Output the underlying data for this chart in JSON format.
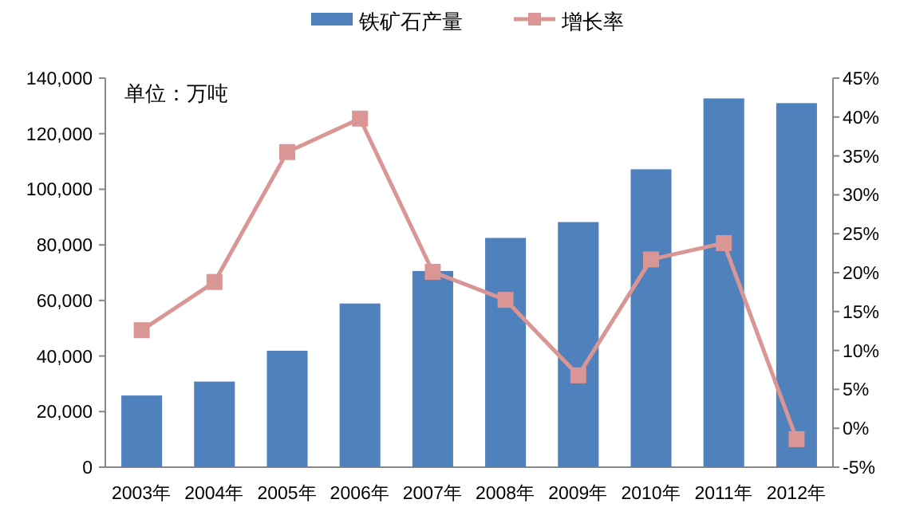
{
  "chart_data": {
    "type": "bar",
    "categories": [
      "2003年",
      "2004年",
      "2005年",
      "2006年",
      "2007年",
      "2008年",
      "2009年",
      "2010年",
      "2011年",
      "2012年"
    ],
    "series": [
      {
        "name": "铁矿石产量",
        "color": "#4f81bd",
        "values": [
          25800,
          30800,
          41900,
          58900,
          70600,
          82500,
          88200,
          107200,
          132700,
          131000
        ]
      },
      {
        "name": "增长率",
        "type": "line",
        "axis": "y2",
        "color": "#d99694",
        "marker": "square",
        "values": [
          12.6,
          18.8,
          35.5,
          39.8,
          20.1,
          16.5,
          6.8,
          21.7,
          23.8,
          -1.4
        ]
      }
    ],
    "ylim": [
      0,
      140000
    ],
    "yticks": [
      0,
      {
        "value": 20000,
        "label": "20,000"
      },
      {
        "value": 40000,
        "label": "40,000"
      },
      {
        "value": 60000,
        "label": "60,000"
      },
      {
        "value": 80000,
        "label": "80,000"
      },
      {
        "value": 100000,
        "label": "100,000"
      },
      {
        "value": 120000,
        "label": "120,000"
      },
      {
        "value": 140000,
        "label": "140,000"
      }
    ],
    "y2lim": [
      -5,
      45
    ],
    "y2ticks": [
      {
        "value": -5,
        "label": "-5%"
      },
      {
        "value": 0,
        "label": "0%"
      },
      {
        "value": 5,
        "label": "5%"
      },
      {
        "value": 10,
        "label": "10%"
      },
      {
        "value": 15,
        "label": "15%"
      },
      {
        "value": 20,
        "label": "20%"
      },
      {
        "value": 25,
        "label": "25%"
      },
      {
        "value": 30,
        "label": "30%"
      },
      {
        "value": 35,
        "label": "35%"
      },
      {
        "value": 40,
        "label": "40%"
      },
      {
        "value": 45,
        "label": "45%"
      }
    ],
    "annotations": [
      "单位：万吨"
    ],
    "legend": "top",
    "grid": false
  }
}
